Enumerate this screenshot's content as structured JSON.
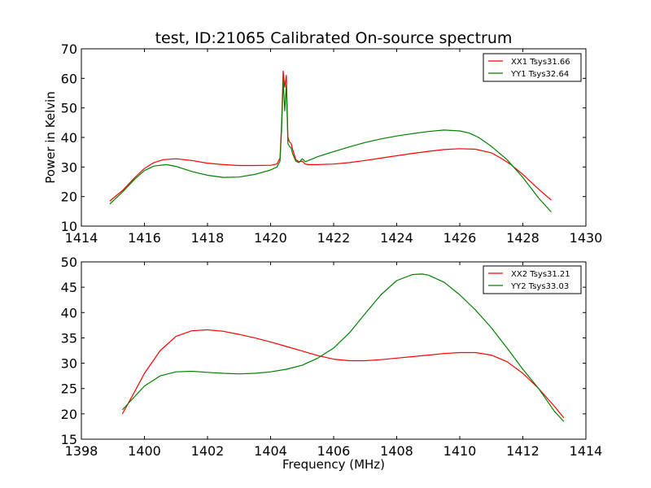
{
  "chart_data": [
    {
      "type": "line",
      "title": "test, ID:21065 Calibrated On-source spectrum",
      "xlabel": "",
      "ylabel": "Power in Kelvin",
      "xlim": [
        1414,
        1430
      ],
      "ylim": [
        10,
        70
      ],
      "xticks": [
        1414,
        1416,
        1418,
        1420,
        1422,
        1424,
        1426,
        1428,
        1430
      ],
      "yticks": [
        10,
        20,
        30,
        40,
        50,
        60,
        70
      ],
      "legend_position": "top-right",
      "grid": false,
      "series": [
        {
          "name": "XX1 Tsys31.66",
          "color": "#ff0000",
          "x": [
            1414.9,
            1415.3,
            1415.7,
            1416.0,
            1416.3,
            1416.6,
            1417.0,
            1417.5,
            1418.0,
            1418.5,
            1419.0,
            1419.5,
            1420.0,
            1420.2,
            1420.3,
            1420.35,
            1420.4,
            1420.45,
            1420.5,
            1420.55,
            1420.6,
            1420.65,
            1420.7,
            1420.8,
            1420.9,
            1421.0,
            1421.1,
            1421.2,
            1421.5,
            1422.0,
            1422.5,
            1423.0,
            1423.5,
            1424.0,
            1424.5,
            1425.0,
            1425.5,
            1426.0,
            1426.5,
            1427.0,
            1427.3,
            1427.6,
            1428.0,
            1428.5,
            1428.9
          ],
          "y": [
            18.5,
            22.0,
            26.5,
            29.5,
            31.5,
            32.5,
            32.8,
            32.2,
            31.3,
            30.8,
            30.5,
            30.5,
            30.6,
            31.0,
            33.0,
            45.0,
            62.5,
            57.0,
            61.0,
            40.0,
            38.5,
            38.0,
            36.0,
            32.5,
            31.8,
            32.0,
            31.0,
            30.8,
            30.8,
            31.0,
            31.5,
            32.2,
            33.0,
            33.8,
            34.6,
            35.3,
            35.9,
            36.2,
            36.0,
            34.8,
            33.0,
            31.0,
            27.5,
            22.5,
            18.8
          ]
        },
        {
          "name": "YY1 Tsys32.64",
          "color": "#008000",
          "x": [
            1414.9,
            1415.3,
            1415.7,
            1416.0,
            1416.3,
            1416.7,
            1417.0,
            1417.5,
            1418.0,
            1418.5,
            1419.0,
            1419.5,
            1420.0,
            1420.2,
            1420.3,
            1420.35,
            1420.4,
            1420.45,
            1420.5,
            1420.55,
            1420.6,
            1420.65,
            1420.7,
            1420.8,
            1420.9,
            1421.0,
            1421.1,
            1421.2,
            1421.5,
            1422.0,
            1422.5,
            1423.0,
            1423.5,
            1424.0,
            1424.5,
            1425.0,
            1425.5,
            1426.0,
            1426.3,
            1426.6,
            1427.0,
            1427.5,
            1428.0,
            1428.5,
            1428.9
          ],
          "y": [
            17.5,
            21.5,
            26.0,
            28.8,
            30.3,
            30.8,
            30.2,
            28.5,
            27.2,
            26.5,
            26.6,
            27.5,
            29.0,
            30.0,
            32.0,
            43.0,
            59.5,
            49.0,
            58.0,
            38.0,
            37.0,
            36.5,
            34.5,
            32.0,
            31.5,
            32.8,
            31.8,
            32.2,
            33.5,
            35.2,
            36.8,
            38.3,
            39.5,
            40.5,
            41.3,
            42.0,
            42.5,
            42.2,
            41.5,
            40.0,
            37.0,
            32.5,
            26.5,
            19.5,
            14.8
          ]
        }
      ]
    },
    {
      "type": "line",
      "title": "",
      "xlabel": "Frequency (MHz)",
      "ylabel": "",
      "xlim": [
        1398,
        1414
      ],
      "ylim": [
        15,
        50
      ],
      "xticks": [
        1398,
        1400,
        1402,
        1404,
        1406,
        1408,
        1410,
        1412,
        1414
      ],
      "yticks": [
        15,
        20,
        25,
        30,
        35,
        40,
        45,
        50
      ],
      "legend_position": "top-right",
      "grid": false,
      "series": [
        {
          "name": "XX2 Tsys31.21",
          "color": "#ff0000",
          "x": [
            1399.3,
            1399.7,
            1400.0,
            1400.5,
            1401.0,
            1401.5,
            1402.0,
            1402.5,
            1403.0,
            1403.5,
            1404.0,
            1404.5,
            1405.0,
            1405.5,
            1406.0,
            1406.5,
            1407.0,
            1407.5,
            1408.0,
            1408.5,
            1409.0,
            1409.5,
            1410.0,
            1410.5,
            1411.0,
            1411.5,
            1412.0,
            1412.5,
            1413.0,
            1413.3
          ],
          "y": [
            20.0,
            24.5,
            28.0,
            32.5,
            35.3,
            36.4,
            36.6,
            36.3,
            35.7,
            35.0,
            34.2,
            33.3,
            32.4,
            31.5,
            30.8,
            30.5,
            30.5,
            30.7,
            31.0,
            31.3,
            31.6,
            31.9,
            32.1,
            32.1,
            31.6,
            30.3,
            28.0,
            25.0,
            21.5,
            19.2
          ]
        },
        {
          "name": "YY2 Tsys33.03",
          "color": "#008000",
          "x": [
            1399.3,
            1399.7,
            1400.0,
            1400.5,
            1401.0,
            1401.5,
            1402.0,
            1402.5,
            1403.0,
            1403.5,
            1404.0,
            1404.5,
            1405.0,
            1405.5,
            1406.0,
            1406.5,
            1407.0,
            1407.5,
            1408.0,
            1408.5,
            1408.8,
            1409.0,
            1409.5,
            1410.0,
            1410.5,
            1411.0,
            1411.5,
            1412.0,
            1412.5,
            1413.0,
            1413.3
          ],
          "y": [
            20.8,
            23.5,
            25.5,
            27.5,
            28.3,
            28.4,
            28.2,
            28.0,
            27.9,
            28.0,
            28.3,
            28.8,
            29.6,
            31.0,
            33.0,
            36.0,
            39.8,
            43.5,
            46.3,
            47.5,
            47.6,
            47.4,
            46.0,
            43.5,
            40.5,
            37.0,
            33.0,
            28.8,
            25.0,
            20.5,
            18.5
          ]
        }
      ]
    }
  ]
}
